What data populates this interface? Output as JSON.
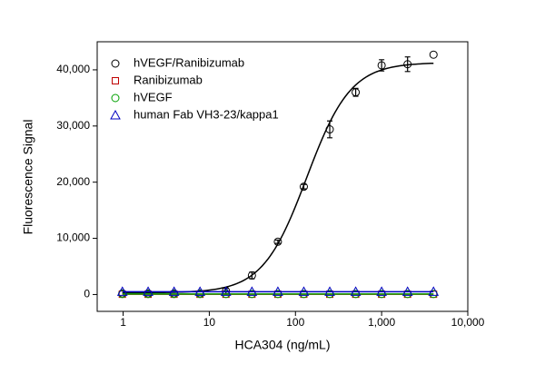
{
  "chart_data": {
    "type": "scatter",
    "xlabel": "HCA304 (ng/mL)",
    "ylabel": "Fluorescence Signal",
    "xscale": "log",
    "xlim": [
      0.5,
      10000
    ],
    "ylim": [
      -3000,
      45000
    ],
    "xticks": [
      1,
      10,
      100,
      {
        "value": 1000,
        "label": "1,000"
      },
      {
        "value": 10000,
        "label": "10,000"
      }
    ],
    "yticks": [
      0,
      {
        "value": 10000,
        "label": "10,000"
      },
      {
        "value": 20000,
        "label": "20,000"
      },
      {
        "value": 30000,
        "label": "30,000"
      },
      {
        "value": 40000,
        "label": "40,000"
      }
    ],
    "legend": "upper left",
    "x": [
      0.98,
      1.95,
      3.9,
      7.8,
      15.6,
      31.25,
      62.5,
      125,
      250,
      500,
      1000,
      2000,
      4000
    ],
    "series": [
      {
        "name": "hVEGF/Ranibizumab",
        "color": "#000000",
        "marker": "circle",
        "values": [
          200,
          200,
          200,
          200,
          650,
          3400,
          9400,
          19200,
          29400,
          36000,
          40800,
          41000,
          42700
        ],
        "errors": [
          null,
          null,
          null,
          null,
          500,
          600,
          300,
          400,
          1500,
          700,
          1000,
          1300,
          null
        ],
        "fit": {
          "bottom": 300,
          "top": 41300,
          "ec50": 135,
          "hill": 1.7
        }
      },
      {
        "name": "Ranibizumab",
        "color": "#c00000",
        "marker": "square",
        "values": [
          50,
          50,
          50,
          50,
          50,
          50,
          50,
          50,
          50,
          50,
          50,
          50,
          50
        ],
        "fit": {
          "bottom": 50,
          "top": 50
        }
      },
      {
        "name": "hVEGF",
        "color": "#00a000",
        "marker": "circle",
        "values": [
          100,
          100,
          100,
          100,
          100,
          100,
          100,
          100,
          100,
          100,
          100,
          100,
          100
        ],
        "fit": {
          "bottom": 100,
          "top": 100
        }
      },
      {
        "name": "human Fab VH3-23/kappa1",
        "color": "#0000c0",
        "marker": "triangle",
        "values": [
          500,
          500,
          500,
          500,
          500,
          500,
          500,
          500,
          500,
          500,
          500,
          500,
          500
        ],
        "fit": {
          "bottom": 500,
          "top": 500
        }
      }
    ]
  }
}
